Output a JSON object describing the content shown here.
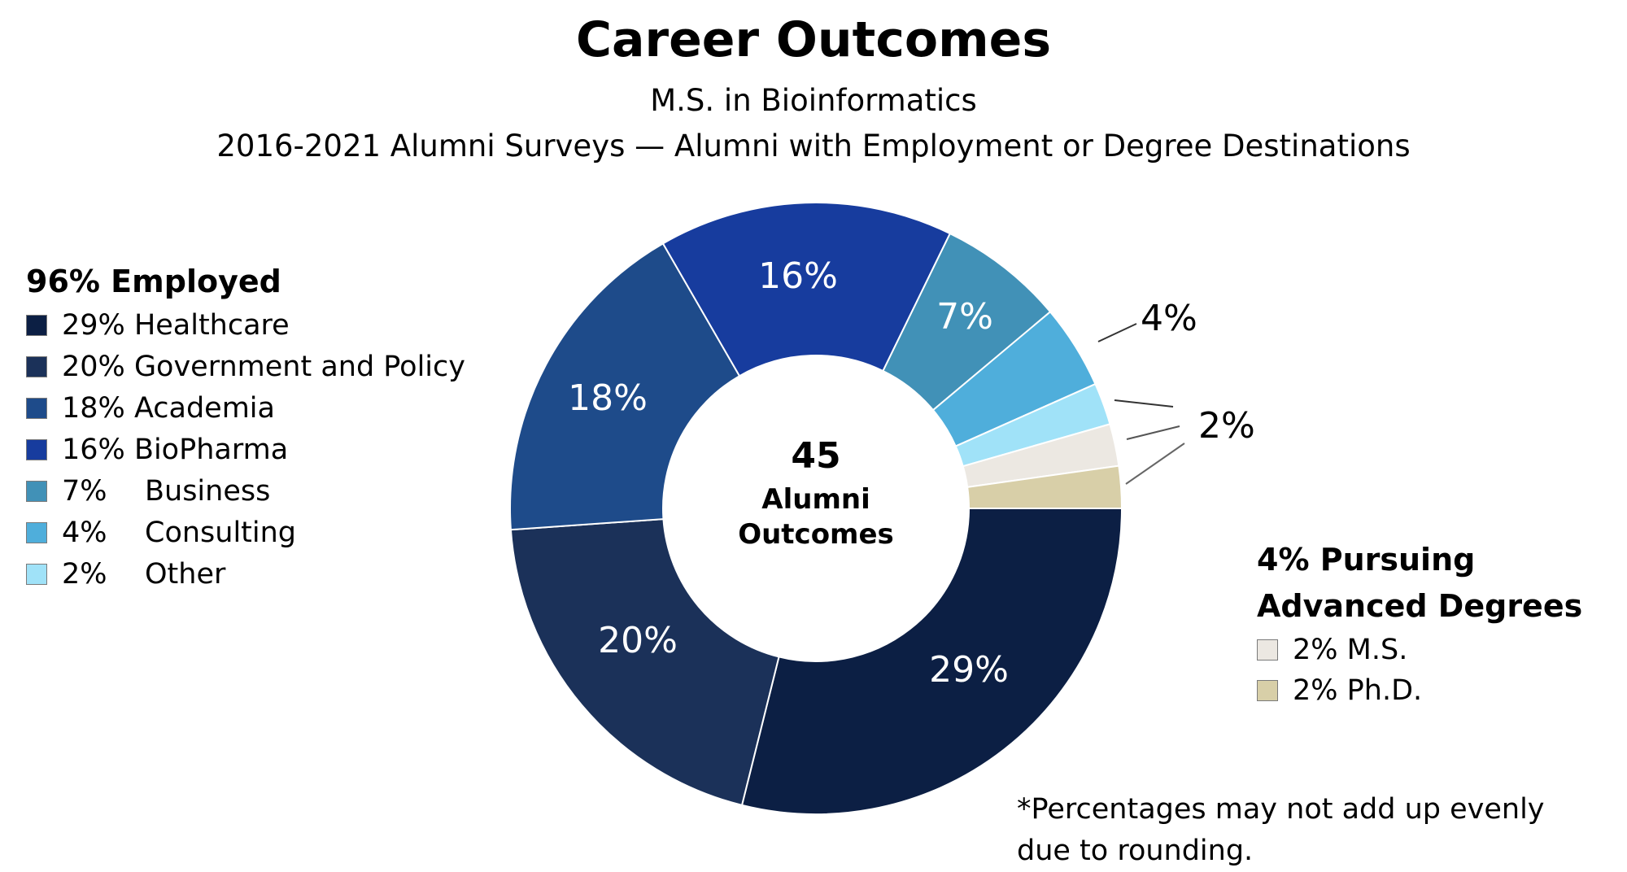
{
  "header": {
    "title": "Career Outcomes",
    "subtitle1": "M.S. in Bioinformatics",
    "subtitle2": "2016-2021 Alumni Surveys — Alumni with Employment or Degree Destinations"
  },
  "center": {
    "count": "45",
    "line1": "Alumni",
    "line2": "Outcomes"
  },
  "employed_legend": {
    "title": "96% Employed",
    "items": [
      {
        "pct": "29%",
        "label": "Healthcare",
        "color": "#0c1f44"
      },
      {
        "pct": "20%",
        "label": "Government and Policy",
        "color": "#1b3159"
      },
      {
        "pct": "18%",
        "label": "Academia",
        "color": "#1e4b8a"
      },
      {
        "pct": "16%",
        "label": "BioPharma",
        "color": "#173c9e"
      },
      {
        "pct": "7%",
        "label": "Business",
        "color": "#4191b7"
      },
      {
        "pct": "4%",
        "label": "Consulting",
        "color": "#4faedb"
      },
      {
        "pct": "2%",
        "label": "Other",
        "color": "#a0e2f8"
      }
    ]
  },
  "degrees_legend": {
    "title_line1": "4% Pursuing",
    "title_line2": "Advanced Degrees",
    "items": [
      {
        "pct": "2%",
        "label": "M.S.",
        "color": "#ece8e2"
      },
      {
        "pct": "2%",
        "label": "Ph.D.",
        "color": "#d8cfa8"
      }
    ]
  },
  "slice_labels": {
    "healthcare": "29%",
    "government": "20%",
    "academia": "18%",
    "biopharma": "16%",
    "business": "7%",
    "consulting": "4%",
    "small": "2%"
  },
  "footnote": {
    "line1": "*Percentages may not add up evenly",
    "line2": "due to rounding."
  },
  "chart_data": {
    "type": "pie",
    "variant": "donut",
    "title": "Career Outcomes",
    "subtitle": "M.S. in Bioinformatics — 2016-2021 Alumni Surveys — Alumni with Employment or Degree Destinations",
    "total": 45,
    "total_label": "45 Alumni Outcomes",
    "categories": [
      "Healthcare",
      "Government and Policy",
      "Academia",
      "BioPharma",
      "Business",
      "Consulting",
      "Other",
      "M.S.",
      "Ph.D."
    ],
    "values": [
      29,
      20,
      18,
      16,
      7,
      4,
      2,
      2,
      2
    ],
    "unit": "%",
    "groups": [
      {
        "name": "96% Employed",
        "members": [
          "Healthcare",
          "Government and Policy",
          "Academia",
          "BioPharma",
          "Business",
          "Consulting",
          "Other"
        ]
      },
      {
        "name": "4% Pursuing Advanced Degrees",
        "members": [
          "M.S.",
          "Ph.D."
        ]
      }
    ],
    "colors": [
      "#0c1f44",
      "#1b3159",
      "#1e4b8a",
      "#173c9e",
      "#4191b7",
      "#4faedb",
      "#a0e2f8",
      "#ece8e2",
      "#d8cfa8"
    ],
    "legend_position": "left and right",
    "note": "*Percentages may not add up evenly due to rounding."
  }
}
